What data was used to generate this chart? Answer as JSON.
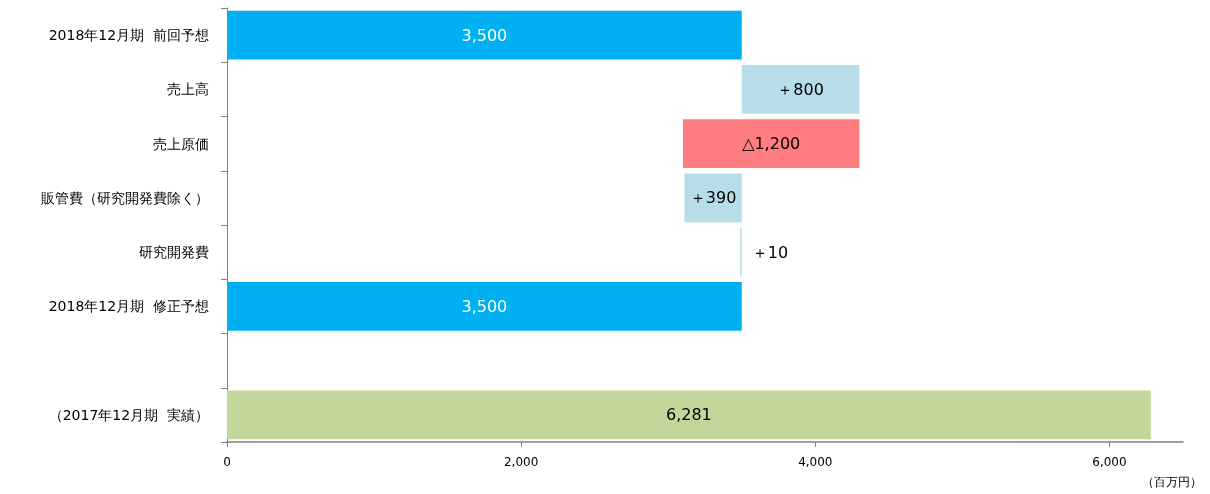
{
  "chart_data": {
    "type": "bar",
    "orientation": "horizontal",
    "categories": [
      "2018年12月期  前回予想",
      "売上高",
      "売上原価",
      "販管費（研究開発費除く）",
      "研究開発費",
      "2018年12月期  修正予想",
      null,
      "（2017年12月期  実績）"
    ],
    "values": [
      3500,
      800,
      -1200,
      390,
      10,
      3500,
      null,
      6281
    ],
    "base": [
      0,
      3500,
      4300,
      3110,
      3490,
      0,
      null,
      0
    ],
    "colors": [
      "#00b0f0",
      "#b7dee8",
      "#ff7c80",
      "#b7dee8",
      "#b7dee8",
      "#00b0f0",
      null,
      "#c4d79b"
    ],
    "value_labels": [
      "3,500",
      "＋800",
      "△1,200",
      "＋390",
      "＋10",
      "3,500",
      null,
      "6,281"
    ],
    "xlim": [
      0,
      6500
    ],
    "xticks": [
      0,
      {
        "value": 2000,
        "label": "2,000"
      },
      {
        "value": 4000,
        "label": "4,000"
      },
      {
        "value": 6000,
        "label": "6,000"
      }
    ],
    "xlabel": "（百万円）",
    "grid": false
  }
}
